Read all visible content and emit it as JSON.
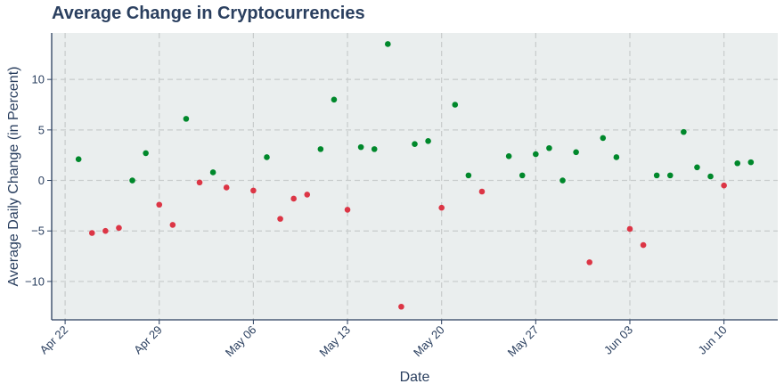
{
  "chart_data": {
    "type": "scatter",
    "title": "Average Change in Cryptocurrencies",
    "xlabel": "Date",
    "ylabel": "Average Daily Change (in Percent)",
    "x_range": [
      "2024-04-21",
      "2024-06-14"
    ],
    "ylim": [
      -13.8,
      14.6
    ],
    "y_ticks": [
      -10,
      -5,
      0,
      5,
      10
    ],
    "x_ticks": [
      {
        "date": "2024-04-22",
        "label": "Apr 22"
      },
      {
        "date": "2024-04-29",
        "label": "Apr 29"
      },
      {
        "date": "2024-05-06",
        "label": "May 06"
      },
      {
        "date": "2024-05-13",
        "label": "May 13"
      },
      {
        "date": "2024-05-20",
        "label": "May 20"
      },
      {
        "date": "2024-05-27",
        "label": "May 27"
      },
      {
        "date": "2024-06-03",
        "label": "Jun 03"
      },
      {
        "date": "2024-06-10",
        "label": "Jun 10"
      }
    ],
    "grid": true,
    "colors": {
      "positive": "#00882b",
      "negative": "#dc3545",
      "plot_bg": "#eaeeee",
      "grid": "#c8cccc",
      "axis": "#2a3f5f"
    },
    "points": [
      {
        "x": "2024-04-23",
        "y": 2.1
      },
      {
        "x": "2024-04-24",
        "y": -5.2
      },
      {
        "x": "2024-04-25",
        "y": -5.0
      },
      {
        "x": "2024-04-26",
        "y": -4.7
      },
      {
        "x": "2024-04-27",
        "y": 0.0
      },
      {
        "x": "2024-04-28",
        "y": 2.7
      },
      {
        "x": "2024-04-29",
        "y": -2.4
      },
      {
        "x": "2024-04-30",
        "y": -4.4
      },
      {
        "x": "2024-05-01",
        "y": 6.1
      },
      {
        "x": "2024-05-02",
        "y": -0.2
      },
      {
        "x": "2024-05-03",
        "y": 0.8
      },
      {
        "x": "2024-05-04",
        "y": -0.7
      },
      {
        "x": "2024-05-06",
        "y": -1.0
      },
      {
        "x": "2024-05-07",
        "y": 2.3
      },
      {
        "x": "2024-05-08",
        "y": -3.8
      },
      {
        "x": "2024-05-09",
        "y": -1.8
      },
      {
        "x": "2024-05-10",
        "y": -1.4
      },
      {
        "x": "2024-05-11",
        "y": 3.1
      },
      {
        "x": "2024-05-12",
        "y": 8.0
      },
      {
        "x": "2024-05-13",
        "y": -2.9
      },
      {
        "x": "2024-05-14",
        "y": 3.3
      },
      {
        "x": "2024-05-15",
        "y": 3.1
      },
      {
        "x": "2024-05-16",
        "y": 13.5
      },
      {
        "x": "2024-05-17",
        "y": -12.5
      },
      {
        "x": "2024-05-18",
        "y": 3.6
      },
      {
        "x": "2024-05-19",
        "y": 3.9
      },
      {
        "x": "2024-05-20",
        "y": -2.7
      },
      {
        "x": "2024-05-21",
        "y": 7.5
      },
      {
        "x": "2024-05-22",
        "y": 0.5
      },
      {
        "x": "2024-05-23",
        "y": -1.1
      },
      {
        "x": "2024-05-25",
        "y": 2.4
      },
      {
        "x": "2024-05-26",
        "y": 0.5
      },
      {
        "x": "2024-05-27",
        "y": 2.6
      },
      {
        "x": "2024-05-28",
        "y": 3.2
      },
      {
        "x": "2024-05-29",
        "y": 0.0
      },
      {
        "x": "2024-05-30",
        "y": 2.8
      },
      {
        "x": "2024-05-31",
        "y": -8.1
      },
      {
        "x": "2024-06-01",
        "y": 4.2
      },
      {
        "x": "2024-06-02",
        "y": 2.3
      },
      {
        "x": "2024-06-03",
        "y": -4.8
      },
      {
        "x": "2024-06-04",
        "y": -6.4
      },
      {
        "x": "2024-06-05",
        "y": 0.5
      },
      {
        "x": "2024-06-06",
        "y": 0.5
      },
      {
        "x": "2024-06-07",
        "y": 4.8
      },
      {
        "x": "2024-06-08",
        "y": 1.3
      },
      {
        "x": "2024-06-09",
        "y": 0.4
      },
      {
        "x": "2024-06-10",
        "y": -0.5
      },
      {
        "x": "2024-06-11",
        "y": 1.7
      },
      {
        "x": "2024-06-12",
        "y": 1.8
      }
    ]
  }
}
